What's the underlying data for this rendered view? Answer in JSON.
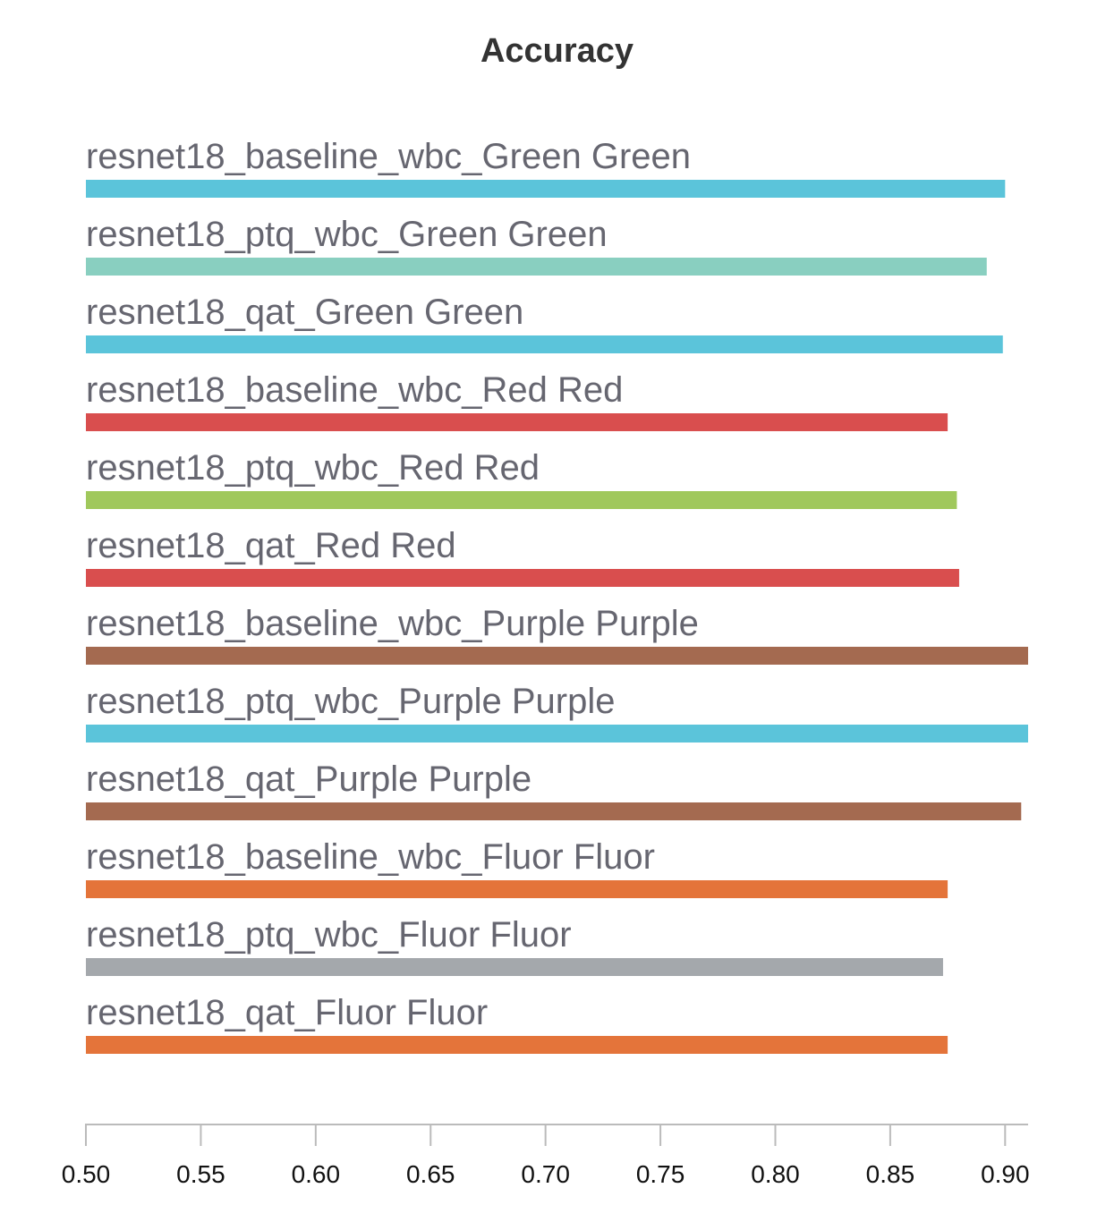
{
  "chart_data": {
    "type": "bar",
    "orientation": "horizontal",
    "title": "Accuracy",
    "xlabel": "",
    "ylabel": "",
    "xlim": [
      0.5,
      0.91
    ],
    "ticks": [
      "0.50",
      "0.55",
      "0.60",
      "0.65",
      "0.70",
      "0.75",
      "0.80",
      "0.85",
      "0.90"
    ],
    "tick_values": [
      0.5,
      0.55,
      0.6,
      0.65,
      0.7,
      0.75,
      0.8,
      0.85,
      0.9
    ],
    "grid": false,
    "legend": "none",
    "categories": [
      "resnet18_baseline_wbc_Green Green",
      "resnet18_ptq_wbc_Green Green",
      "resnet18_qat_Green Green",
      "resnet18_baseline_wbc_Red Red",
      "resnet18_ptq_wbc_Red Red",
      "resnet18_qat_Red Red",
      "resnet18_baseline_wbc_Purple Purple",
      "resnet18_ptq_wbc_Purple Purple",
      "resnet18_qat_Purple Purple",
      "resnet18_baseline_wbc_Fluor Fluor",
      "resnet18_ptq_wbc_Fluor Fluor",
      "resnet18_qat_Fluor Fluor"
    ],
    "values": [
      0.9,
      0.892,
      0.899,
      0.875,
      0.879,
      0.88,
      0.91,
      0.91,
      0.907,
      0.875,
      0.873,
      0.875
    ],
    "colors": [
      "#5bc4da",
      "#89cfc0",
      "#5bc4da",
      "#d94e4e",
      "#a0c85c",
      "#d94e4e",
      "#a46a50",
      "#5bc4da",
      "#a46a50",
      "#e4743a",
      "#a4a8ac",
      "#e4743a"
    ]
  }
}
